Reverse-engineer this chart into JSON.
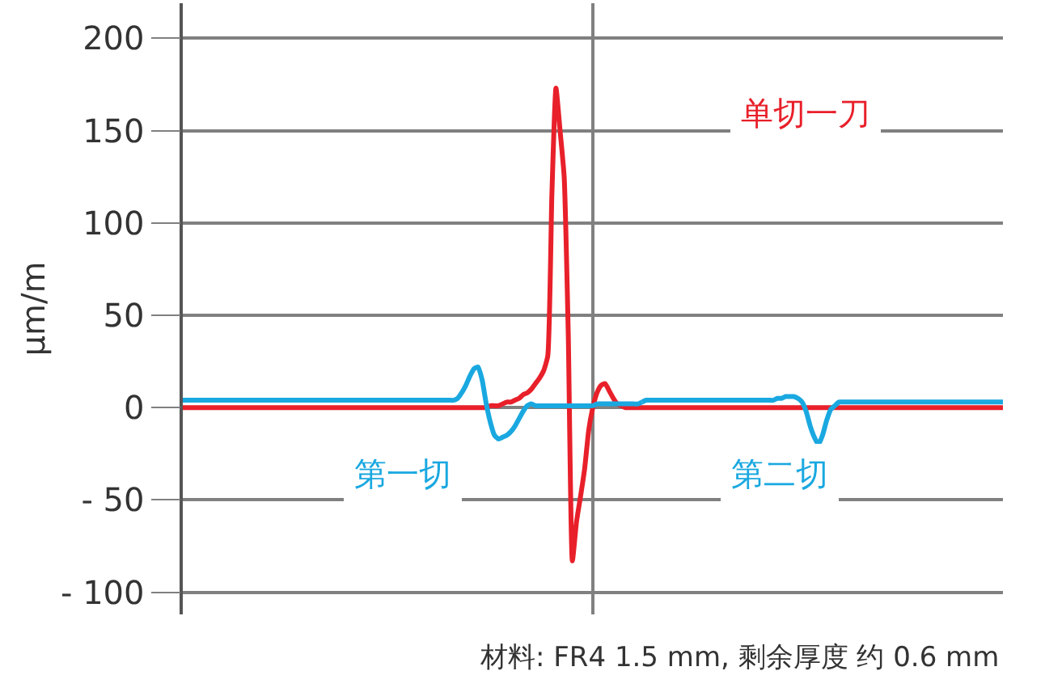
{
  "chart_data": {
    "type": "line",
    "ylabel": "μm/m",
    "categories": [
      null,
      null,
      null,
      null,
      null,
      null,
      null,
      null,
      null,
      null,
      null,
      null,
      null,
      null,
      null,
      null,
      null,
      null,
      null,
      null,
      null,
      null,
      null,
      null,
      null,
      null,
      null,
      null,
      null,
      null,
      null,
      null,
      null,
      null,
      null,
      null,
      null,
      null,
      null,
      null,
      null,
      null,
      null,
      null,
      null,
      null,
      null,
      null,
      null,
      null,
      null,
      null,
      null,
      null,
      null,
      null,
      null,
      null,
      null,
      null,
      null,
      null,
      null,
      null,
      null,
      null,
      null,
      null,
      null,
      null,
      null,
      null,
      null,
      null,
      null,
      null,
      null,
      null,
      null,
      null,
      null,
      null,
      null,
      null,
      null,
      null,
      null,
      null,
      null,
      null,
      null,
      null,
      null,
      null,
      null,
      null,
      null,
      null,
      null,
      null,
      null,
      null,
      null,
      null,
      null,
      null,
      null,
      null,
      null,
      null,
      null,
      null,
      null,
      null,
      null,
      null,
      null,
      null,
      null,
      null,
      null,
      null,
      null,
      null,
      null,
      null,
      null,
      null,
      null,
      null,
      null,
      null,
      null,
      null,
      null,
      null,
      null,
      null,
      null,
      null,
      null,
      null,
      null,
      null,
      null,
      null,
      null,
      null,
      null,
      null,
      null,
      null,
      null,
      null,
      null,
      null,
      null,
      null,
      null,
      null,
      null,
      null,
      null,
      null,
      null,
      null,
      null,
      null,
      null,
      null,
      null,
      null,
      null,
      null,
      null,
      null,
      null,
      null,
      null,
      null,
      null,
      null,
      null,
      null,
      null,
      null,
      null,
      null,
      null,
      null,
      null,
      null,
      null,
      null,
      null,
      null,
      null,
      null,
      null,
      null,
      null
    ],
    "ylim": [
      -112,
      219
    ],
    "yticks": [
      {
        "value": -100,
        "label": "- 100"
      },
      {
        "value": -50,
        "label": "- 50"
      },
      0,
      50,
      100,
      150,
      200
    ],
    "tick_labels": "y",
    "grid": true,
    "legend": false,
    "marker": "none",
    "line_style": "solid",
    "series": [
      {
        "name": "单切一刀",
        "color": "#e8202a",
        "values": [
          0,
          0,
          0,
          0,
          0,
          0,
          0,
          0,
          0,
          0,
          0,
          0,
          0,
          0,
          0,
          0,
          0,
          0,
          0,
          0,
          0,
          0,
          0,
          0,
          0,
          0,
          0,
          0,
          0,
          0,
          0,
          0,
          0,
          0,
          0,
          0,
          0,
          0,
          0,
          0,
          0,
          0,
          0,
          0,
          0,
          0,
          0,
          0,
          0,
          0,
          0,
          0,
          0,
          0,
          0,
          0,
          0,
          0,
          0,
          0,
          0,
          0,
          0,
          0,
          0,
          0,
          0,
          0,
          0,
          0,
          0,
          0,
          0,
          0,
          0,
          1,
          1,
          1,
          2,
          3,
          3,
          4,
          5,
          7,
          8,
          10,
          13,
          16,
          20,
          28,
          115,
          173,
          150,
          125,
          40,
          -83,
          -62,
          -48,
          -33,
          -12,
          0,
          8,
          12,
          13,
          9,
          5,
          2,
          1,
          0,
          0,
          0,
          0,
          0,
          0,
          0,
          0,
          0,
          0,
          0,
          0,
          0,
          0,
          0,
          0,
          0,
          0,
          0,
          0,
          0,
          0,
          0,
          0,
          0,
          0,
          0,
          0,
          0,
          0,
          0,
          0,
          0,
          0,
          0,
          0,
          0,
          0,
          0,
          0,
          0,
          0,
          0,
          0,
          0,
          0,
          0,
          0,
          0,
          0,
          0,
          0,
          0,
          0,
          0,
          0,
          0,
          0,
          0,
          0,
          0,
          0,
          0,
          0,
          0,
          0,
          0,
          0,
          0,
          0,
          0,
          0,
          0,
          0,
          0,
          0,
          0,
          0,
          0,
          0,
          0,
          0,
          0,
          0,
          0,
          0,
          0,
          0,
          0,
          0,
          0,
          0,
          0
        ]
      },
      {
        "name": "第一切",
        "color": "#1aa8e0",
        "values": [
          4,
          4,
          4,
          4,
          4,
          4,
          4,
          4,
          4,
          4,
          4,
          4,
          4,
          4,
          4,
          4,
          4,
          4,
          4,
          4,
          4,
          4,
          4,
          4,
          4,
          4,
          4,
          4,
          4,
          4,
          4,
          4,
          4,
          4,
          4,
          4,
          4,
          4,
          4,
          4,
          4,
          4,
          4,
          4,
          4,
          4,
          4,
          4,
          4,
          4,
          4,
          4,
          4,
          4,
          4,
          4,
          4,
          4,
          4,
          4,
          4,
          4,
          4,
          4,
          4,
          4,
          4,
          5,
          8,
          12,
          17,
          21,
          22,
          15,
          2,
          -8,
          -15,
          -17,
          -16,
          -15,
          -13,
          -10,
          -6,
          -2,
          1,
          2,
          1,
          1,
          1,
          1,
          1,
          1,
          1,
          1,
          1,
          1,
          1,
          1,
          1,
          1,
          1,
          2,
          2,
          2,
          2,
          2,
          2,
          2,
          2,
          2,
          2,
          2,
          3,
          null,
          null,
          null,
          null,
          null,
          null,
          null,
          null,
          null,
          null,
          null,
          null,
          null,
          null,
          null,
          null,
          null,
          null,
          null,
          null,
          null,
          null,
          null,
          null,
          null,
          null,
          null,
          null,
          null,
          null,
          null,
          null,
          null,
          null,
          null,
          null,
          null,
          null,
          null,
          null,
          null,
          null,
          null,
          null,
          null,
          null,
          null,
          null,
          null,
          null,
          null,
          null,
          null,
          null,
          null,
          null,
          null,
          null,
          null,
          null,
          null,
          null,
          null,
          null,
          null,
          null,
          null,
          null,
          null,
          null,
          null,
          null,
          null,
          null,
          null,
          null,
          null,
          null,
          null,
          null,
          null,
          null,
          null,
          null,
          null,
          null,
          null,
          null
        ]
      },
      {
        "name": "第二切",
        "color": "#1aa8e0",
        "values": [
          null,
          null,
          null,
          null,
          null,
          null,
          null,
          null,
          null,
          null,
          null,
          null,
          null,
          null,
          null,
          null,
          null,
          null,
          null,
          null,
          null,
          null,
          null,
          null,
          null,
          null,
          null,
          null,
          null,
          null,
          null,
          null,
          null,
          null,
          null,
          null,
          null,
          null,
          null,
          null,
          null,
          null,
          null,
          null,
          null,
          null,
          null,
          null,
          null,
          null,
          null,
          null,
          null,
          null,
          null,
          null,
          null,
          null,
          null,
          null,
          null,
          null,
          null,
          null,
          null,
          null,
          null,
          null,
          null,
          null,
          null,
          null,
          null,
          null,
          null,
          null,
          null,
          null,
          null,
          null,
          null,
          null,
          null,
          null,
          null,
          null,
          null,
          null,
          null,
          null,
          null,
          null,
          null,
          null,
          null,
          null,
          null,
          null,
          null,
          null,
          null,
          null,
          null,
          null,
          null,
          null,
          null,
          null,
          null,
          null,
          null,
          null,
          3,
          4,
          4,
          4,
          4,
          4,
          4,
          4,
          4,
          4,
          4,
          4,
          4,
          4,
          4,
          4,
          4,
          4,
          4,
          4,
          4,
          4,
          4,
          4,
          4,
          4,
          4,
          4,
          4,
          4,
          4,
          4,
          4,
          5,
          5,
          6,
          6,
          6,
          5,
          3,
          -2,
          -10,
          -16,
          -20,
          -15,
          -7,
          -1,
          1,
          3,
          3,
          3,
          3,
          3,
          3,
          3,
          3,
          3,
          3,
          3,
          3,
          3,
          3,
          3,
          3,
          3,
          3,
          3,
          3,
          3,
          3,
          3,
          3,
          3,
          3,
          3,
          3,
          3,
          3,
          3,
          3,
          3,
          3,
          3,
          3,
          3,
          3,
          3,
          3,
          3
        ]
      }
    ],
    "annotations": [
      "材料: FR4 1.5 mm, 剩余厚度 约 0.6 mm"
    ]
  }
}
